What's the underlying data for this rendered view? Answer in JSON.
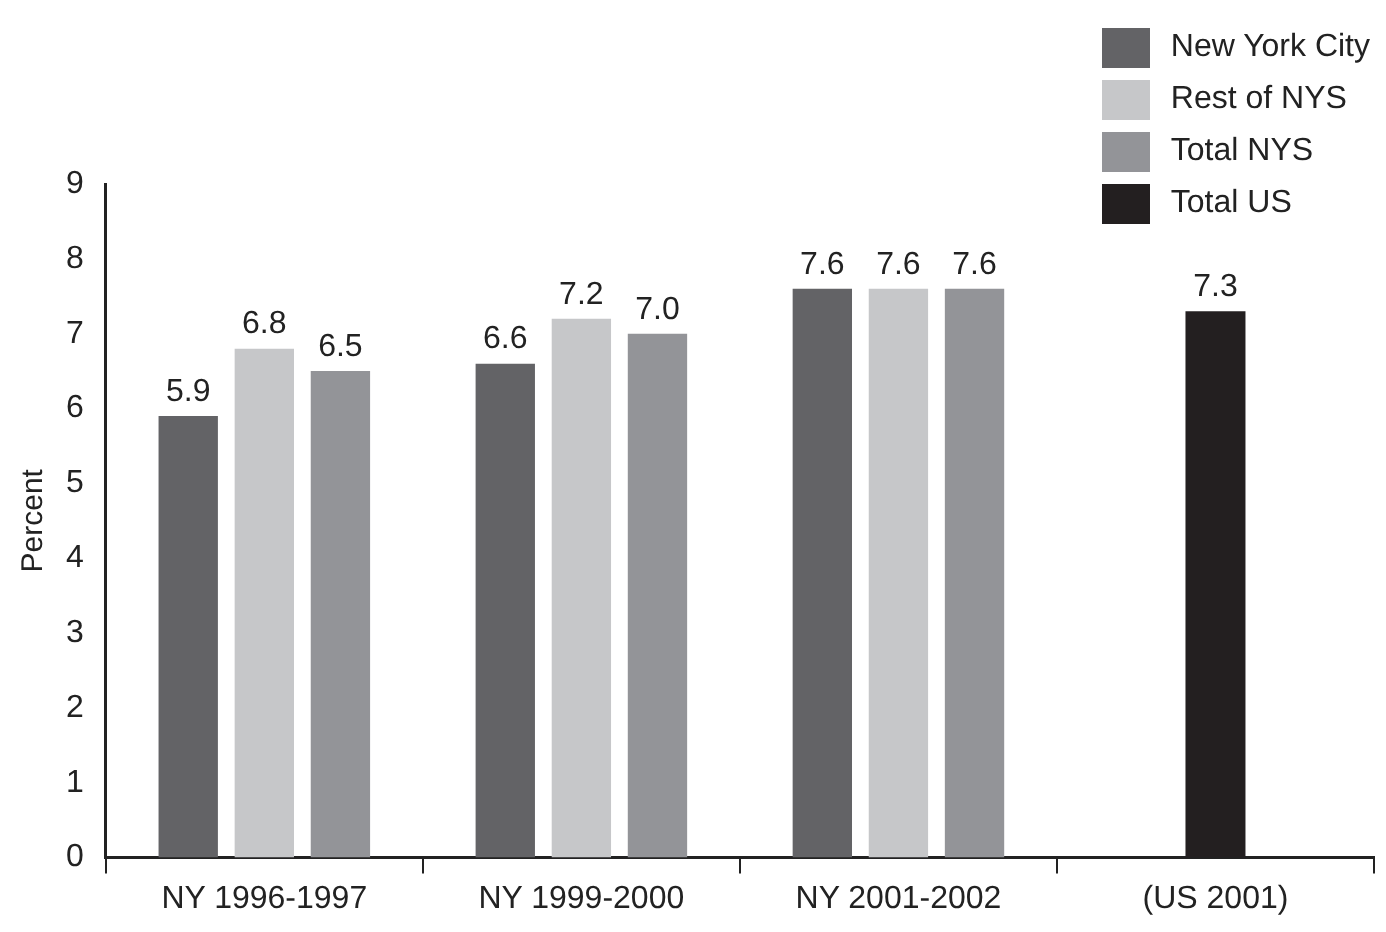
{
  "chart_data": {
    "type": "bar",
    "ylabel": "Percent",
    "categories": [
      "NY 1996-1997",
      "NY 1999-2000",
      "NY 2001-2002",
      "(US 2001)"
    ],
    "series": [
      {
        "name": "New York City",
        "color": "#636366",
        "values": [
          5.9,
          6.6,
          7.6,
          null
        ],
        "value_labels": [
          "5.9",
          "6.6",
          "7.6",
          null
        ]
      },
      {
        "name": "Rest of NYS",
        "color": "#c6c7c9",
        "values": [
          6.8,
          7.2,
          7.6,
          null
        ],
        "value_labels": [
          "6.8",
          "7.2",
          "7.6",
          null
        ]
      },
      {
        "name": "Total NYS",
        "color": "#939498",
        "values": [
          6.5,
          7.0,
          7.6,
          null
        ],
        "value_labels": [
          "6.5",
          "7.0",
          "7.6",
          null
        ]
      },
      {
        "name": "Total US",
        "color": "#231f20",
        "values": [
          null,
          null,
          null,
          7.3
        ],
        "value_labels": [
          null,
          null,
          null,
          "7.3"
        ]
      }
    ],
    "ylim": [
      0,
      9
    ],
    "yticks": [
      0,
      1,
      2,
      3,
      4,
      5,
      6,
      7,
      8,
      9
    ],
    "legend": "top right"
  }
}
